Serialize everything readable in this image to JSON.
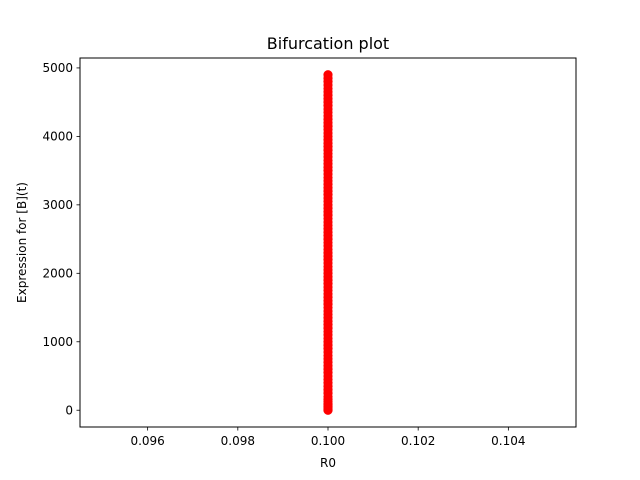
{
  "chart_data": {
    "type": "scatter",
    "title": "Bifurcation plot",
    "xlabel": "R0",
    "ylabel": "Expression for [B](t)",
    "xlim": [
      0.0945,
      0.1055
    ],
    "ylim": [
      -245,
      5145
    ],
    "xticks": [
      "0.096",
      "0.098",
      "0.100",
      "0.102",
      "0.104"
    ],
    "yticks": [
      "0",
      "1000",
      "2000",
      "3000",
      "4000",
      "5000"
    ],
    "grid": false,
    "marker_color": "#ff0000",
    "series": [
      {
        "x_constant": 0.1,
        "y": [
          0,
          10,
          20,
          40,
          60,
          80,
          100,
          130,
          160,
          200,
          250,
          300,
          350,
          400,
          450,
          500,
          550,
          600,
          650,
          700,
          750,
          800,
          850,
          900,
          950,
          1000,
          1050,
          1100,
          1150,
          1200,
          1250,
          1300,
          1350,
          1400,
          1450,
          1500,
          1550,
          1600,
          1650,
          1700,
          1750,
          1800,
          1850,
          1900,
          1950,
          2000,
          2050,
          2100,
          2150,
          2200,
          2250,
          2300,
          2350,
          2400,
          2450,
          2500,
          2550,
          2600,
          2650,
          2700,
          2750,
          2800,
          2850,
          2900,
          2950,
          3000,
          3050,
          3100,
          3150,
          3200,
          3250,
          3300,
          3350,
          3400,
          3450,
          3500,
          3550,
          3600,
          3650,
          3700,
          3750,
          3800,
          3850,
          3900,
          3950,
          4000,
          4050,
          4100,
          4150,
          4200,
          4250,
          4300,
          4350,
          4400,
          4450,
          4500,
          4550,
          4600,
          4650,
          4700,
          4750,
          4800,
          4850,
          4900
        ]
      }
    ]
  }
}
